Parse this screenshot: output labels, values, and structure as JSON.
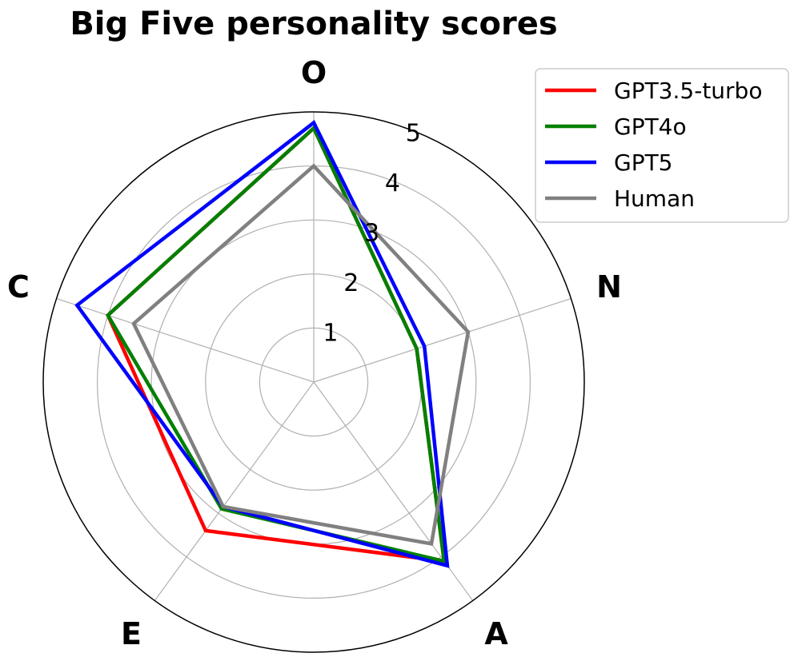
{
  "chart_data": {
    "type": "radar",
    "title": "Big Five personality scores",
    "axes": [
      "O",
      "N",
      "A",
      "E",
      "C"
    ],
    "rlim": [
      0,
      5
    ],
    "r_ticks": [
      "1",
      "2",
      "3",
      "4",
      "5"
    ],
    "grid": true,
    "legend_position": "top-right",
    "series": [
      {
        "name": "GPT3.5-turbo",
        "color": "#ff0000",
        "values": [
          4.7,
          2.0,
          4.1,
          3.4,
          4.0
        ]
      },
      {
        "name": "GPT4o",
        "color": "#008000",
        "values": [
          4.7,
          2.0,
          4.1,
          2.9,
          4.0
        ]
      },
      {
        "name": "GPT5",
        "color": "#0000ff",
        "values": [
          4.8,
          2.15,
          4.2,
          2.85,
          4.6
        ]
      },
      {
        "name": "Human",
        "color": "#808080",
        "values": [
          4.0,
          3.0,
          3.7,
          2.85,
          3.5
        ]
      }
    ]
  }
}
